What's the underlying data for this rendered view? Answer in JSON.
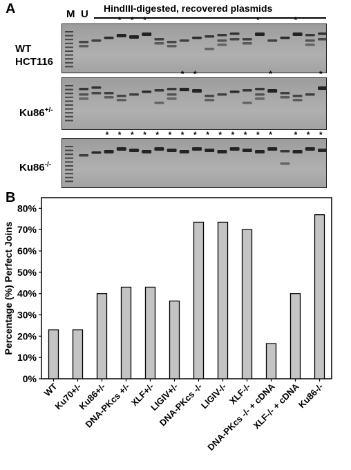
{
  "panel_a": {
    "letter": "A",
    "lane_headers": {
      "marker": "M",
      "uncut": "U"
    },
    "title": "HindIII-digested, recovered plasmids",
    "asterisk": "*",
    "gels": [
      {
        "label_line1": "WT",
        "label_line2": "HCT116",
        "label_sup": "",
        "starred_lanes": [
          4,
          5,
          6,
          15,
          18
        ]
      },
      {
        "label_line1": "Ku86",
        "label_line2": "",
        "label_sup": "+/-",
        "starred_lanes": [
          9,
          10,
          16,
          20
        ]
      },
      {
        "label_line1": "Ku86",
        "label_line2": "",
        "label_sup": "-/-",
        "starred_lanes": [
          3,
          4,
          5,
          6,
          7,
          8,
          9,
          10,
          11,
          12,
          13,
          14,
          15,
          16,
          18,
          19,
          20
        ]
      }
    ]
  },
  "panel_b": {
    "letter": "B"
  },
  "chart_data": {
    "type": "bar",
    "title": "",
    "xlabel": "",
    "ylabel": "Percentage (%) Perfect Joins",
    "ylim": [
      0,
      85
    ],
    "yticks": [
      "0%",
      "10%",
      "20%",
      "30%",
      "40%",
      "50%",
      "60%",
      "70%",
      "80%"
    ],
    "grid": false,
    "bar_color": "#c4c4c4",
    "categories": [
      "WT",
      "Ku70+/-",
      "Ku86+/-",
      "DNA-PKcs +/-",
      "XLF+/-",
      "LIGIV+/-",
      "DNA-PKcs -/-",
      "LIGIV-/-",
      "XLF-/-",
      "DNA-PKcs -/- + cDNA",
      "XLF-/- + cDNA",
      "Ku86-/-"
    ],
    "values": [
      23,
      23,
      40,
      43,
      43,
      36.5,
      73.5,
      73.5,
      70,
      16.5,
      40,
      77
    ]
  }
}
